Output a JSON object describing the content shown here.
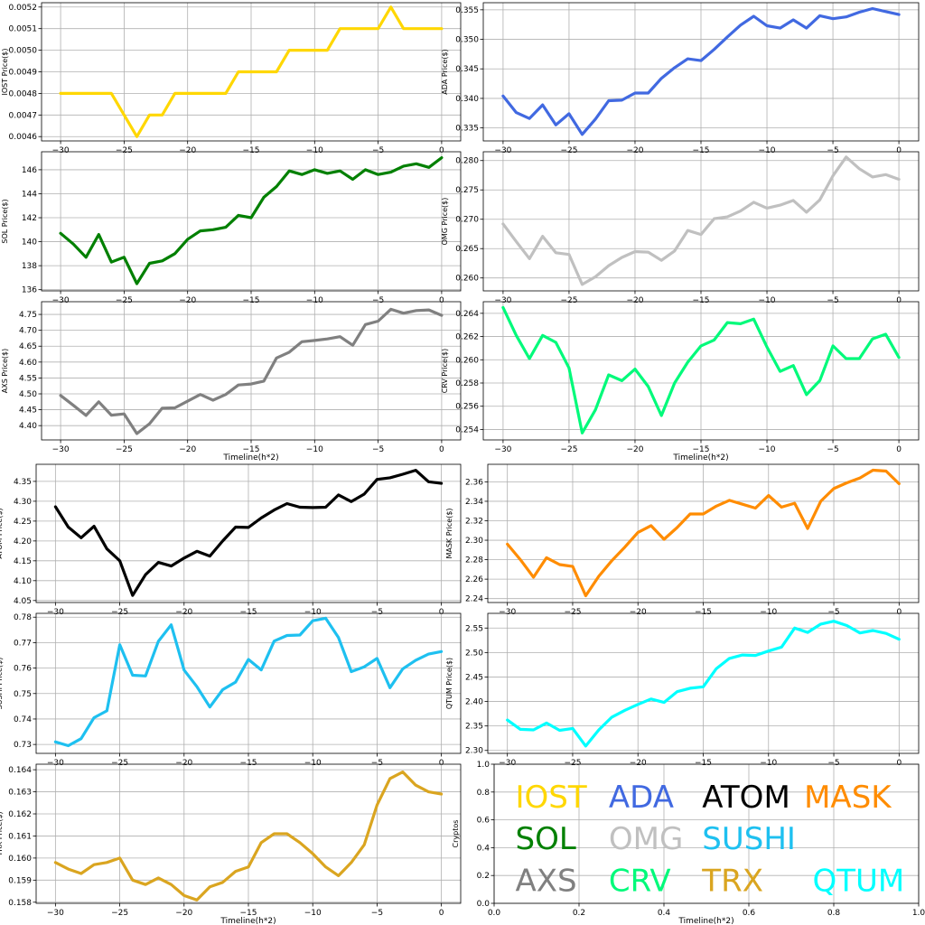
{
  "chart_data": [
    {
      "type": "line",
      "name": "IOST",
      "ylabel": "IOST Price($)",
      "xlabel": "",
      "color": "#FFD700",
      "xlim": [
        -31.5,
        1.5
      ],
      "ylim": [
        0.00458,
        0.00522
      ],
      "yticks": [
        0.0046,
        0.0047,
        0.0048,
        0.0049,
        0.005,
        0.0051,
        0.0052
      ],
      "yfmt": 4,
      "xticks": [
        -30,
        -25,
        -20,
        -15,
        -10,
        -5,
        0
      ],
      "x": [
        -30,
        -29,
        -28,
        -27,
        -26,
        -25,
        -24,
        -23,
        -22,
        -21,
        -20,
        -19,
        -18,
        -17,
        -16,
        -15,
        -14,
        -13,
        -12,
        -11,
        -10,
        -9,
        -8,
        -7,
        -6,
        -5,
        -4,
        -3,
        -2,
        -1,
        0
      ],
      "y": [
        0.0048,
        0.0048,
        0.0048,
        0.0048,
        0.0048,
        0.0047,
        0.0046,
        0.0047,
        0.0047,
        0.0048,
        0.0048,
        0.0048,
        0.0048,
        0.0048,
        0.0049,
        0.0049,
        0.0049,
        0.0049,
        0.005,
        0.005,
        0.005,
        0.005,
        0.0051,
        0.0051,
        0.0051,
        0.0051,
        0.0052,
        0.0051,
        0.0051,
        0.0051,
        0.0051
      ]
    },
    {
      "type": "line",
      "name": "ADA",
      "ylabel": "ADA  Price($)",
      "xlabel": "",
      "color": "#4169E1",
      "xlim": [
        -31.5,
        1.5
      ],
      "ylim": [
        0.3328,
        0.3562
      ],
      "yticks": [
        0.335,
        0.34,
        0.345,
        0.35,
        0.355
      ],
      "yfmt": 3,
      "xticks": [
        -30,
        -25,
        -20,
        -15,
        -10,
        -5,
        0
      ],
      "x": [
        -30,
        -29,
        -28,
        -27,
        -26,
        -25,
        -24,
        -23,
        -22,
        -21,
        -20,
        -19,
        -18,
        -17,
        -16,
        -15,
        -14,
        -13,
        -12,
        -11,
        -10,
        -9,
        -8,
        -7,
        -6,
        -5,
        -4,
        -3,
        -2,
        -1,
        0
      ],
      "y": [
        0.3404,
        0.3376,
        0.3366,
        0.3389,
        0.3355,
        0.3374,
        0.3339,
        0.3365,
        0.3396,
        0.3397,
        0.3409,
        0.3409,
        0.3434,
        0.3452,
        0.3467,
        0.3464,
        0.3483,
        0.3504,
        0.3524,
        0.3539,
        0.3523,
        0.3519,
        0.3533,
        0.3519,
        0.354,
        0.3535,
        0.3538,
        0.3546,
        0.3552,
        0.3547,
        0.3542
      ]
    },
    {
      "type": "line",
      "name": "SOL",
      "ylabel": "SOL Price($)",
      "xlabel": "",
      "color": "#008000",
      "xlim": [
        -31.5,
        1.5
      ],
      "ylim": [
        135.9,
        147.5
      ],
      "yticks": [
        136,
        138,
        140,
        142,
        144,
        146
      ],
      "yfmt": 0,
      "xticks": [
        -30,
        -25,
        -20,
        -15,
        -10,
        -5,
        0
      ],
      "x": [
        -30,
        -29,
        -28,
        -27,
        -26,
        -25,
        -24,
        -23,
        -22,
        -21,
        -20,
        -19,
        -18,
        -17,
        -16,
        -15,
        -14,
        -13,
        -12,
        -11,
        -10,
        -9,
        -8,
        -7,
        -6,
        -5,
        -4,
        -3,
        -2,
        -1,
        0
      ],
      "y": [
        140.7,
        139.8,
        138.7,
        140.6,
        138.3,
        138.7,
        136.5,
        138.2,
        138.4,
        139.0,
        140.2,
        140.9,
        141.0,
        141.2,
        142.2,
        142.0,
        143.7,
        144.6,
        145.9,
        145.6,
        146.0,
        145.7,
        145.9,
        145.2,
        146.0,
        145.6,
        145.8,
        146.3,
        146.5,
        146.2,
        147.0
      ]
    },
    {
      "type": "line",
      "name": "OMG",
      "ylabel": "OMG  Price($)",
      "xlabel": "",
      "color": "#C0C0C0",
      "xlim": [
        -31.5,
        1.5
      ],
      "ylim": [
        0.2578,
        0.2815
      ],
      "yticks": [
        0.26,
        0.265,
        0.27,
        0.275,
        0.28
      ],
      "yfmt": 3,
      "xticks": [
        -30,
        -25,
        -20,
        -15,
        -10,
        -5,
        0
      ],
      "x": [
        -30,
        -29,
        -28,
        -27,
        -26,
        -25,
        -24,
        -23,
        -22,
        -21,
        -20,
        -19,
        -18,
        -17,
        -16,
        -15,
        -14,
        -13,
        -12,
        -11,
        -10,
        -9,
        -8,
        -7,
        -6,
        -5,
        -4,
        -3,
        -2,
        -1,
        0
      ],
      "y": [
        0.2692,
        0.2662,
        0.2633,
        0.2671,
        0.2643,
        0.264,
        0.2589,
        0.2602,
        0.2621,
        0.2635,
        0.2645,
        0.2644,
        0.263,
        0.2646,
        0.2681,
        0.2674,
        0.2701,
        0.2704,
        0.2714,
        0.2729,
        0.2719,
        0.2724,
        0.2732,
        0.2712,
        0.2733,
        0.2774,
        0.2806,
        0.2786,
        0.2772,
        0.2776,
        0.2768
      ]
    },
    {
      "type": "line",
      "name": "AXS",
      "ylabel": "AXS Price($)",
      "xlabel": "Timeline(h*2)",
      "color": "#808080",
      "xlim": [
        -31.5,
        1.5
      ],
      "ylim": [
        4.355,
        4.79
      ],
      "yticks": [
        4.4,
        4.45,
        4.5,
        4.55,
        4.6,
        4.65,
        4.7,
        4.75
      ],
      "yfmt": 2,
      "xticks": [
        -30,
        -25,
        -20,
        -15,
        -10,
        -5,
        0
      ],
      "x": [
        -30,
        -29,
        -28,
        -27,
        -26,
        -25,
        -24,
        -23,
        -22,
        -21,
        -20,
        -19,
        -18,
        -17,
        -16,
        -15,
        -14,
        -13,
        -12,
        -11,
        -10,
        -9,
        -8,
        -7,
        -6,
        -5,
        -4,
        -3,
        -2,
        -1,
        0
      ],
      "y": [
        4.495,
        4.464,
        4.432,
        4.475,
        4.433,
        4.437,
        4.375,
        4.406,
        4.455,
        4.456,
        4.477,
        4.498,
        4.48,
        4.498,
        4.528,
        4.531,
        4.54,
        4.613,
        4.631,
        4.664,
        4.668,
        4.673,
        4.68,
        4.653,
        4.718,
        4.729,
        4.766,
        4.754,
        4.762,
        4.764,
        4.747
      ]
    },
    {
      "type": "line",
      "name": "CRV",
      "ylabel": "CRV  Price($)",
      "xlabel": "Timeline(h*2)",
      "color": "#00FA7A",
      "xlim": [
        -31.5,
        1.5
      ],
      "ylim": [
        0.2531,
        0.265
      ],
      "yticks": [
        0.254,
        0.256,
        0.258,
        0.26,
        0.262,
        0.264
      ],
      "yfmt": 3,
      "xticks": [
        -30,
        -25,
        -20,
        -15,
        -10,
        -5,
        0
      ],
      "x": [
        -30,
        -29,
        -28,
        -27,
        -26,
        -25,
        -24,
        -23,
        -22,
        -21,
        -20,
        -19,
        -18,
        -17,
        -16,
        -15,
        -14,
        -13,
        -12,
        -11,
        -10,
        -9,
        -8,
        -7,
        -6,
        -5,
        -4,
        -3,
        -2,
        -1,
        0
      ],
      "y": [
        0.2645,
        0.2621,
        0.2601,
        0.2621,
        0.2615,
        0.2593,
        0.2537,
        0.2557,
        0.2587,
        0.2582,
        0.2592,
        0.2577,
        0.2552,
        0.258,
        0.2598,
        0.2612,
        0.2617,
        0.2632,
        0.2631,
        0.2635,
        0.2611,
        0.259,
        0.2595,
        0.257,
        0.2582,
        0.2612,
        0.2601,
        0.2601,
        0.2618,
        0.2622,
        0.2602
      ]
    },
    {
      "type": "line",
      "name": "ATOM",
      "ylabel": "ATOM  Price($)",
      "xlabel": "",
      "color": "#000000",
      "xlim": [
        -31.5,
        1.5
      ],
      "ylim": [
        4.045,
        4.393
      ],
      "yticks": [
        4.05,
        4.1,
        4.15,
        4.2,
        4.25,
        4.3,
        4.35
      ],
      "yfmt": 2,
      "xticks": [
        -30,
        -25,
        -20,
        -15,
        -10,
        -5,
        0
      ],
      "x": [
        -30,
        -29,
        -28,
        -27,
        -26,
        -25,
        -24,
        -23,
        -22,
        -21,
        -20,
        -19,
        -18,
        -17,
        -16,
        -15,
        -14,
        -13,
        -12,
        -11,
        -10,
        -9,
        -8,
        -7,
        -6,
        -5,
        -4,
        -3,
        -2,
        -1,
        0
      ],
      "y": [
        4.286,
        4.235,
        4.208,
        4.237,
        4.18,
        4.15,
        4.063,
        4.115,
        4.146,
        4.137,
        4.157,
        4.174,
        4.162,
        4.2,
        4.235,
        4.234,
        4.258,
        4.278,
        4.294,
        4.285,
        4.284,
        4.285,
        4.316,
        4.299,
        4.318,
        4.355,
        4.359,
        4.368,
        4.378,
        4.349,
        4.345
      ]
    },
    {
      "type": "line",
      "name": "MASK",
      "ylabel": "MASK  Price($)",
      "xlabel": "",
      "color": "#FF8C00",
      "xlim": [
        -31.5,
        1.5
      ],
      "ylim": [
        2.236,
        2.378
      ],
      "yticks": [
        2.24,
        2.26,
        2.28,
        2.3,
        2.32,
        2.34,
        2.36
      ],
      "yfmt": 2,
      "xticks": [
        -30,
        -25,
        -20,
        -15,
        -10,
        -5,
        0
      ],
      "x": [
        -30,
        -29,
        -28,
        -27,
        -26,
        -25,
        -24,
        -23,
        -22,
        -21,
        -20,
        -19,
        -18,
        -17,
        -16,
        -15,
        -14,
        -13,
        -12,
        -11,
        -10,
        -9,
        -8,
        -7,
        -6,
        -5,
        -4,
        -3,
        -2,
        -1,
        0
      ],
      "y": [
        2.296,
        2.28,
        2.262,
        2.282,
        2.275,
        2.273,
        2.243,
        2.263,
        2.279,
        2.293,
        2.308,
        2.315,
        2.301,
        2.313,
        2.327,
        2.327,
        2.335,
        2.341,
        2.337,
        2.333,
        2.346,
        2.334,
        2.338,
        2.312,
        2.34,
        2.353,
        2.359,
        2.364,
        2.372,
        2.371,
        2.358
      ]
    },
    {
      "type": "line",
      "name": "SUSHI",
      "ylabel": "SUSHI  Price($)",
      "xlabel": "",
      "color": "#1EC0F0",
      "xlim": [
        -31.5,
        1.5
      ],
      "ylim": [
        0.7265,
        0.7815
      ],
      "yticks": [
        0.73,
        0.74,
        0.75,
        0.76,
        0.77,
        0.78
      ],
      "yfmt": 2,
      "xticks": [
        -30,
        -25,
        -20,
        -15,
        -10,
        -5,
        0
      ],
      "x": [
        -30,
        -29,
        -28,
        -27,
        -26,
        -25,
        -24,
        -23,
        -22,
        -21,
        -20,
        -19,
        -18,
        -17,
        -16,
        -15,
        -14,
        -13,
        -12,
        -11,
        -10,
        -9,
        -8,
        -7,
        -6,
        -5,
        -4,
        -3,
        -2,
        -1,
        0
      ],
      "y": [
        0.731,
        0.7295,
        0.7323,
        0.7405,
        0.7432,
        0.7692,
        0.7572,
        0.7569,
        0.7705,
        0.777,
        0.7592,
        0.7527,
        0.7447,
        0.7515,
        0.7545,
        0.7634,
        0.7593,
        0.7706,
        0.7728,
        0.773,
        0.7786,
        0.7796,
        0.772,
        0.7586,
        0.7605,
        0.7638,
        0.7523,
        0.7597,
        0.7631,
        0.7655,
        0.7665
      ]
    },
    {
      "type": "line",
      "name": "QTUM",
      "ylabel": "QTUM Price($)",
      "xlabel": "",
      "color": "#00FFFF",
      "xlim": [
        -31.5,
        1.5
      ],
      "ylim": [
        2.294,
        2.58
      ],
      "yticks": [
        2.3,
        2.35,
        2.4,
        2.45,
        2.5,
        2.55
      ],
      "yfmt": 2,
      "xticks": [
        -30,
        -25,
        -20,
        -15,
        -10,
        -5,
        0
      ],
      "x": [
        -30,
        -29,
        -28,
        -27,
        -26,
        -25,
        -24,
        -23,
        -22,
        -21,
        -20,
        -19,
        -18,
        -17,
        -16,
        -15,
        -14,
        -13,
        -12,
        -11,
        -10,
        -9,
        -8,
        -7,
        -6,
        -5,
        -4,
        -3,
        -2,
        -1,
        0
      ],
      "y": [
        2.362,
        2.343,
        2.342,
        2.356,
        2.341,
        2.345,
        2.309,
        2.342,
        2.368,
        2.382,
        2.394,
        2.405,
        2.398,
        2.42,
        2.427,
        2.43,
        2.467,
        2.488,
        2.495,
        2.494,
        2.503,
        2.511,
        2.55,
        2.541,
        2.558,
        2.564,
        2.555,
        2.54,
        2.545,
        2.539,
        2.527
      ]
    },
    {
      "type": "line",
      "name": "TRX",
      "ylabel": "TRX Price($)",
      "xlabel": "Timeline(h*2)",
      "color": "#DAA520",
      "xlim": [
        -31.5,
        1.5
      ],
      "ylim": [
        0.15795,
        0.16425
      ],
      "yticks": [
        0.158,
        0.159,
        0.16,
        0.161,
        0.162,
        0.163,
        0.164
      ],
      "yfmt": 3,
      "xticks": [
        -30,
        -25,
        -20,
        -15,
        -10,
        -5,
        0
      ],
      "x": [
        -30,
        -29,
        -28,
        -27,
        -26,
        -25,
        -24,
        -23,
        -22,
        -21,
        -20,
        -19,
        -18,
        -17,
        -16,
        -15,
        -14,
        -13,
        -12,
        -11,
        -10,
        -9,
        -8,
        -7,
        -6,
        -5,
        -4,
        -3,
        -2,
        -1,
        0
      ],
      "y": [
        0.1598,
        0.1595,
        0.1593,
        0.1597,
        0.1598,
        0.16,
        0.159,
        0.1588,
        0.1591,
        0.1588,
        0.1583,
        0.1581,
        0.1587,
        0.1589,
        0.1594,
        0.1596,
        0.1607,
        0.1611,
        0.1611,
        0.1607,
        0.1602,
        0.1596,
        0.1592,
        0.1598,
        0.1606,
        0.1624,
        0.1636,
        0.1639,
        0.1633,
        0.163,
        0.1629
      ]
    },
    {
      "type": "legend",
      "ylabel": "Cryptos",
      "xlabel": "Timeline(h*2)",
      "xlim": [
        0.0,
        1.0
      ],
      "ylim": [
        0.0,
        1.0
      ],
      "xticks": [
        0.0,
        0.2,
        0.4,
        0.6,
        0.8,
        1.0
      ],
      "yticks": [
        0.0,
        0.2,
        0.4,
        0.6,
        0.8,
        1.0
      ],
      "xfmt": 1,
      "yfmt": 1,
      "labels": [
        {
          "text": "IOST",
          "color": "#FFD700",
          "x": 0.05,
          "y": 0.75
        },
        {
          "text": "ADA",
          "color": "#4169E1",
          "x": 0.27,
          "y": 0.75
        },
        {
          "text": "ATOM",
          "color": "#000000",
          "x": 0.49,
          "y": 0.75
        },
        {
          "text": "MASK",
          "color": "#FF8C00",
          "x": 0.73,
          "y": 0.75
        },
        {
          "text": "SOL",
          "color": "#008000",
          "x": 0.05,
          "y": 0.45
        },
        {
          "text": "OMG",
          "color": "#C0C0C0",
          "x": 0.27,
          "y": 0.45
        },
        {
          "text": "SUSHI",
          "color": "#1EC0F0",
          "x": 0.49,
          "y": 0.45
        },
        {
          "text": "AXS",
          "color": "#808080",
          "x": 0.05,
          "y": 0.15
        },
        {
          "text": "CRV",
          "color": "#00FA7A",
          "x": 0.27,
          "y": 0.15
        },
        {
          "text": "TRX",
          "color": "#DAA520",
          "x": 0.49,
          "y": 0.15
        },
        {
          "text": "QTUM",
          "color": "#00FFFF",
          "x": 0.75,
          "y": 0.15
        }
      ]
    }
  ]
}
